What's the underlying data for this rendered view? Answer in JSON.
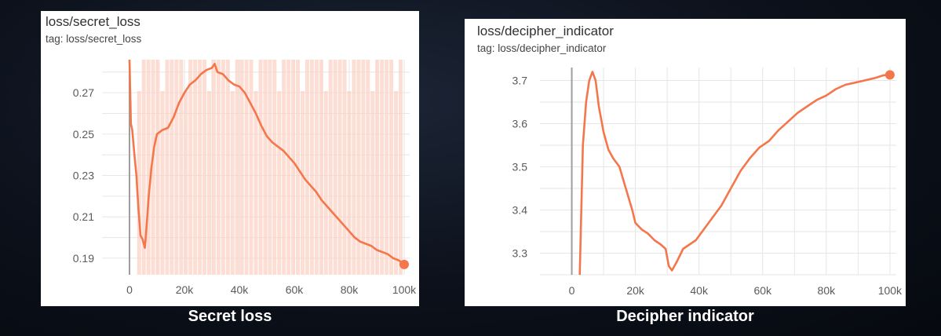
{
  "captions": {
    "left": "Secret loss",
    "right": "Decipher indicator"
  },
  "colors": {
    "line": "#f4764b",
    "raw": "#fcd3c6",
    "grid": "#e6e6e6",
    "axis": "#9e9e9e"
  },
  "chart_data": [
    {
      "type": "line",
      "title": "loss/secret_loss",
      "subtitle": "tag: loss/secret_loss",
      "xlabel": "",
      "ylabel": "",
      "xlim": [
        -10000,
        102000
      ],
      "ylim": [
        0.182,
        0.286
      ],
      "x_ticks": [
        0,
        20000,
        40000,
        60000,
        80000,
        100000
      ],
      "x_tick_labels": [
        "0",
        "20k",
        "40k",
        "60k",
        "80k",
        "100k"
      ],
      "y_ticks": [
        0.19,
        0.21,
        0.23,
        0.25,
        0.27
      ],
      "y_tick_labels": [
        "0.19",
        "0.21",
        "0.23",
        "0.25",
        "0.27"
      ],
      "grid": true,
      "series": [
        {
          "x": [
            0,
            500,
            1000,
            1800,
            2500,
            3200,
            4000,
            4800,
            5600,
            6200,
            7000,
            8000,
            9000,
            10000,
            12000,
            14000,
            16000,
            18000,
            20000,
            22000,
            24000,
            26000,
            28000,
            30000,
            31000,
            32000,
            34000,
            36000,
            38000,
            40000,
            42000,
            44000,
            46000,
            48000,
            50000,
            52000,
            54000,
            56000,
            58000,
            60000,
            62000,
            64000,
            66000,
            68000,
            70000,
            72000,
            74000,
            76000,
            78000,
            80000,
            82000,
            84000,
            86000,
            88000,
            90000,
            92000,
            94000,
            96000,
            98000,
            100000
          ],
          "y": [
            0.286,
            0.255,
            0.252,
            0.24,
            0.23,
            0.215,
            0.201,
            0.199,
            0.195,
            0.205,
            0.22,
            0.234,
            0.244,
            0.25,
            0.252,
            0.253,
            0.258,
            0.265,
            0.27,
            0.274,
            0.276,
            0.279,
            0.281,
            0.282,
            0.284,
            0.28,
            0.279,
            0.276,
            0.274,
            0.273,
            0.27,
            0.265,
            0.26,
            0.254,
            0.249,
            0.246,
            0.244,
            0.242,
            0.239,
            0.236,
            0.232,
            0.228,
            0.225,
            0.222,
            0.218,
            0.215,
            0.212,
            0.209,
            0.206,
            0.203,
            0.2,
            0.198,
            0.197,
            0.196,
            0.194,
            0.193,
            0.192,
            0.19,
            0.189,
            0.187
          ]
        }
      ]
    },
    {
      "type": "line",
      "title": "loss/decipher_indicator",
      "subtitle": "tag: loss/decipher_indicator",
      "xlabel": "",
      "ylabel": "",
      "xlim": [
        -10000,
        102000
      ],
      "ylim": [
        3.25,
        3.73
      ],
      "x_ticks": [
        0,
        20000,
        40000,
        60000,
        80000,
        100000
      ],
      "x_tick_labels": [
        "0",
        "20k",
        "40k",
        "60k",
        "80k",
        "100k"
      ],
      "y_ticks": [
        3.3,
        3.4,
        3.5,
        3.6,
        3.7
      ],
      "y_tick_labels": [
        "3.3",
        "3.4",
        "3.5",
        "3.6",
        "3.7"
      ],
      "grid": true,
      "series": [
        {
          "x": [
            2500,
            3500,
            4500,
            5500,
            6500,
            7500,
            8500,
            10000,
            11500,
            13000,
            15000,
            17000,
            19000,
            20000,
            22000,
            24000,
            26000,
            28000,
            29500,
            30500,
            31500,
            33000,
            35000,
            37000,
            39000,
            41000,
            43000,
            45000,
            47000,
            50000,
            53000,
            56000,
            59000,
            62000,
            65000,
            68000,
            71000,
            74000,
            77000,
            80000,
            83000,
            86000,
            89000,
            92000,
            95000,
            98000,
            100000
          ],
          "y": [
            3.25,
            3.55,
            3.65,
            3.7,
            3.72,
            3.7,
            3.64,
            3.58,
            3.54,
            3.52,
            3.5,
            3.45,
            3.4,
            3.37,
            3.355,
            3.345,
            3.33,
            3.32,
            3.31,
            3.27,
            3.26,
            3.28,
            3.31,
            3.32,
            3.33,
            3.35,
            3.37,
            3.39,
            3.41,
            3.45,
            3.49,
            3.52,
            3.545,
            3.56,
            3.585,
            3.605,
            3.625,
            3.64,
            3.655,
            3.665,
            3.68,
            3.69,
            3.695,
            3.7,
            3.705,
            3.712,
            3.713
          ]
        }
      ]
    }
  ]
}
